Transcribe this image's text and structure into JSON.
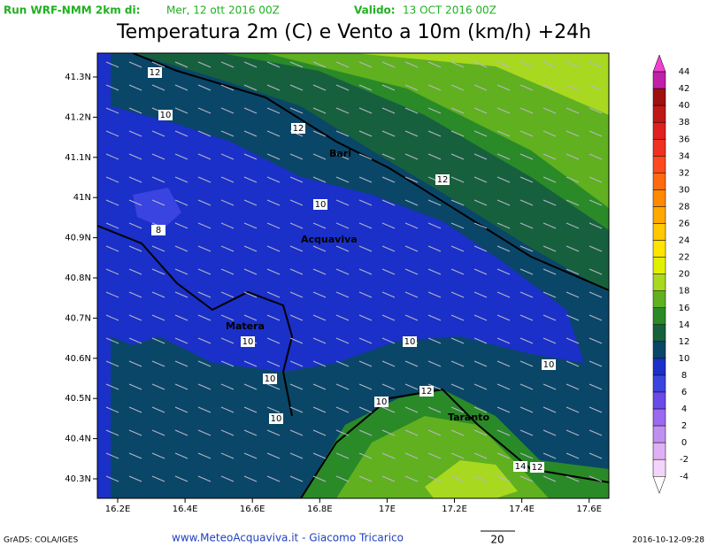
{
  "header": {
    "run": "Run WRF-NMM 2km di:",
    "run_date": "Mer, 12 ott 2016 00Z",
    "valid_label": "Valido:",
    "valid_date": "13 OCT 2016 00Z",
    "title": "Temperatura 2m (C) e Vento a 10m (km/h) +24h"
  },
  "x_axis": [
    "16.2E",
    "16.4E",
    "16.6E",
    "16.8E",
    "17E",
    "17.2E",
    "17.4E",
    "17.6E"
  ],
  "y_axis": [
    "41.3N",
    "41.2N",
    "41.1N",
    "41N",
    "40.9N",
    "40.8N",
    "40.7N",
    "40.6N",
    "40.5N",
    "40.4N",
    "40.3N"
  ],
  "legend": {
    "labels": [
      "44",
      "42",
      "40",
      "38",
      "36",
      "34",
      "32",
      "30",
      "28",
      "26",
      "24",
      "22",
      "20",
      "18",
      "16",
      "14",
      "12",
      "10",
      "8",
      "6",
      "4",
      "2",
      "0",
      "-2",
      "-4"
    ],
    "colors": [
      "#f040d0",
      "#c020a8",
      "#a01010",
      "#c01818",
      "#e02020",
      "#f03020",
      "#ff4a20",
      "#ff6a10",
      "#ff8a00",
      "#ffa800",
      "#ffc800",
      "#ffe400",
      "#e0f000",
      "#a8d820",
      "#60b020",
      "#2a8a28",
      "#17603e",
      "#0a4668",
      "#1a30c8",
      "#3a44e0",
      "#6a4ae8",
      "#9a6af0",
      "#c090f0",
      "#e0b0f4",
      "#f4d4fa",
      "#ffffff"
    ]
  },
  "places": [
    "Bari",
    "Acquaviva",
    "Matera",
    "Taranto"
  ],
  "contour_labels": [
    "12",
    "10",
    "12",
    "12",
    "10",
    "8",
    "10",
    "10",
    "10",
    "10",
    "10",
    "12",
    "10",
    "14",
    "12"
  ],
  "footer": {
    "left": "GrADS: COLA/IGES",
    "center": "www.MeteoAcquaviva.it - Giacomo Tricarico",
    "vector_scale": "20",
    "timestamp": "2016-10-12-09:28"
  }
}
